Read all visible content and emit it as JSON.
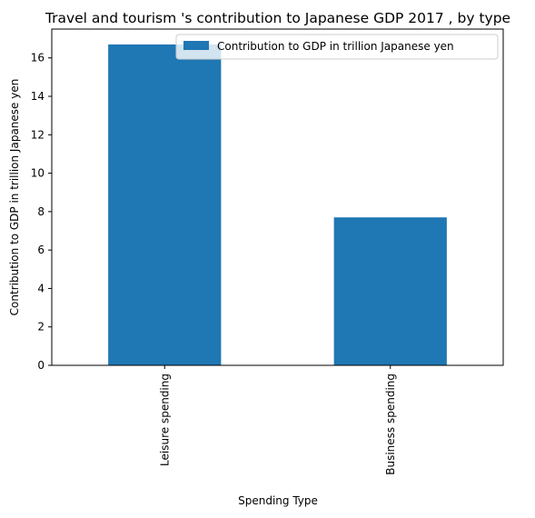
{
  "chart_data": {
    "type": "bar",
    "title": "Travel and tourism 's contribution to Japanese GDP 2017 , by type",
    "xlabel": "Spending Type",
    "ylabel": "Contribution to GDP in trillion Japanese yen",
    "categories": [
      "Leisure spending",
      "Business spending"
    ],
    "series": [
      {
        "name": "Contribution to GDP in trillion Japanese yen",
        "values": [
          16.7,
          7.7
        ],
        "color": "#1f77b4"
      }
    ],
    "ylim": [
      0,
      17.5
    ],
    "yticks": [
      0,
      2,
      4,
      6,
      8,
      10,
      12,
      14,
      16
    ],
    "grid": false,
    "legend_position": "top-right"
  }
}
